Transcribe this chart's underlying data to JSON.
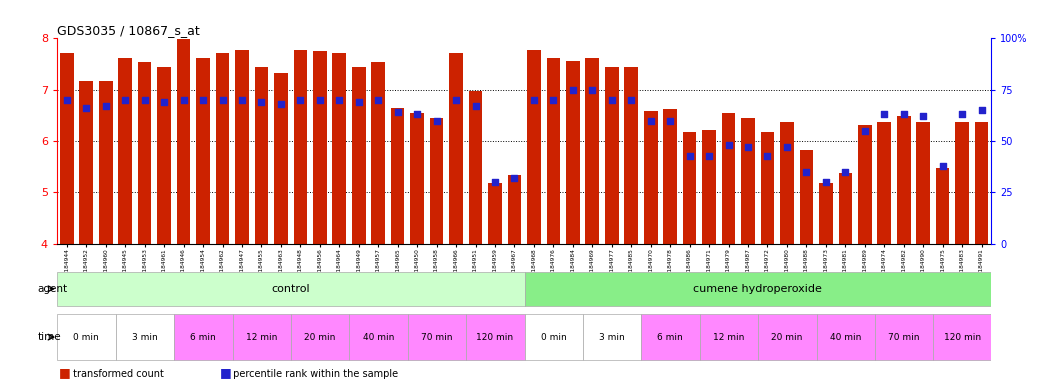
{
  "title": "GDS3035 / 10867_s_at",
  "sample_ids": [
    "GSM184944",
    "GSM184952",
    "GSM184960",
    "GSM184945",
    "GSM184953",
    "GSM184961",
    "GSM184946",
    "GSM184954",
    "GSM184962",
    "GSM184947",
    "GSM184955",
    "GSM184963",
    "GSM184948",
    "GSM184956",
    "GSM184964",
    "GSM184949",
    "GSM184957",
    "GSM184965",
    "GSM184950",
    "GSM184958",
    "GSM184966",
    "GSM184951",
    "GSM184959",
    "GSM184967",
    "GSM184968",
    "GSM184976",
    "GSM184984",
    "GSM184969",
    "GSM184977",
    "GSM184985",
    "GSM184970",
    "GSM184978",
    "GSM184986",
    "GSM184971",
    "GSM184979",
    "GSM184987",
    "GSM184972",
    "GSM184980",
    "GSM184988",
    "GSM184973",
    "GSM184981",
    "GSM184989",
    "GSM184974",
    "GSM184982",
    "GSM184990",
    "GSM184975",
    "GSM184983",
    "GSM184991"
  ],
  "bar_heights": [
    7.72,
    7.18,
    7.18,
    7.62,
    7.55,
    7.44,
    7.98,
    7.62,
    7.72,
    7.78,
    7.44,
    7.32,
    7.78,
    7.76,
    7.72,
    7.44,
    7.55,
    6.65,
    6.55,
    6.45,
    7.72,
    6.98,
    5.18,
    5.35,
    7.78,
    7.62,
    7.56,
    7.62,
    7.44,
    7.44,
    6.58,
    6.62,
    6.18,
    6.22,
    6.55,
    6.45,
    6.18,
    6.38,
    5.82,
    5.18,
    5.38,
    6.32,
    6.38,
    6.48,
    6.38,
    5.48,
    6.38,
    6.38
  ],
  "percentile_values": [
    70,
    66,
    67,
    70,
    70,
    69,
    70,
    70,
    70,
    70,
    69,
    68,
    70,
    70,
    70,
    69,
    70,
    64,
    63,
    60,
    70,
    67,
    30,
    32,
    70,
    70,
    75,
    75,
    70,
    70,
    60,
    60,
    43,
    43,
    48,
    47,
    43,
    47,
    35,
    30,
    35,
    55,
    63,
    63,
    62,
    38,
    63,
    65
  ],
  "ylim_left": [
    4,
    8
  ],
  "ylim_right": [
    0,
    100
  ],
  "bar_color": "#CC2200",
  "dot_color": "#2222CC",
  "time_labels": [
    "0 min",
    "3 min",
    "6 min",
    "12 min",
    "20 min",
    "40 min",
    "70 min",
    "120 min"
  ],
  "agent_left": "control",
  "agent_right": "cumene hydroperoxide",
  "agent_color_left": "#CCFFCC",
  "agent_color_right": "#88EE88",
  "time_colors": [
    "#FFFFFF",
    "#FFFFFF",
    "#FF88FF",
    "#FF88FF",
    "#FF88FF",
    "#FF88FF",
    "#FF88FF",
    "#FF88FF"
  ],
  "samples_per_time": 3
}
